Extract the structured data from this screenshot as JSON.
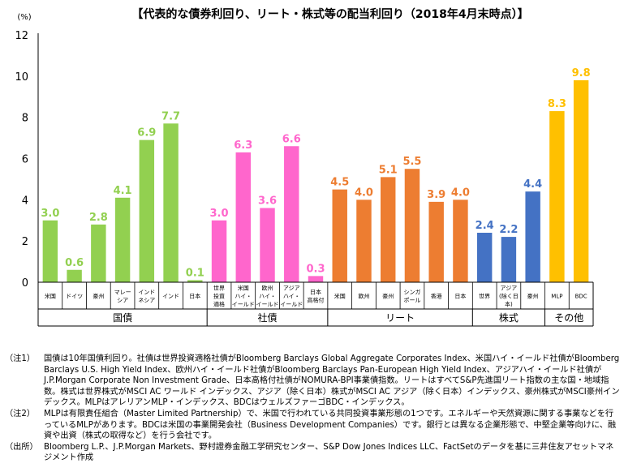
{
  "chart_data": {
    "type": "bar",
    "title": "【代表的な債券利回り、リート・株式等の配当利回り（2018年4月末時点）】",
    "y_unit_label": "(%)",
    "ylim": [
      0,
      12
    ],
    "yticks": [
      "0",
      "2",
      "4",
      "6",
      "8",
      "10",
      "12"
    ],
    "grid": false,
    "categories": [
      "米国",
      "ドイツ",
      "豪州",
      "マレーシア",
      "インドネシア",
      "インド",
      "日本",
      "世界投資適格",
      "米国ハイ・イールド",
      "欧州ハイ・イールド",
      "アジアハイ・イールド",
      "日本高格付",
      "米国",
      "欧州",
      "豪州",
      "シンガポール",
      "香港",
      "日本",
      "世界",
      "アジア(除く日本)",
      "豪州",
      "MLP",
      "BDC"
    ],
    "category_labels": [
      [
        "米国"
      ],
      [
        "ドイツ"
      ],
      [
        "豪州"
      ],
      [
        "マレー",
        "シア"
      ],
      [
        "インド",
        "ネシア"
      ],
      [
        "インド"
      ],
      [
        "日本"
      ],
      [
        "世界",
        "投資",
        "適格"
      ],
      [
        "米国",
        "ハイ・",
        "イールド"
      ],
      [
        "欧州",
        "ハイ・",
        "イールド"
      ],
      [
        "アジア",
        "ハイ・",
        "イールド"
      ],
      [
        "日本",
        "高格付"
      ],
      [
        "米国"
      ],
      [
        "欧州"
      ],
      [
        "豪州"
      ],
      [
        "シンガ",
        "ポール"
      ],
      [
        "香港"
      ],
      [
        "日本"
      ],
      [
        "世界"
      ],
      [
        "アジア",
        "(除く日",
        "本)"
      ],
      [
        "豪州"
      ],
      [
        "MLP"
      ],
      [
        "BDC"
      ]
    ],
    "values": [
      3.0,
      0.6,
      2.8,
      4.1,
      6.9,
      7.7,
      0.1,
      3.0,
      6.3,
      3.6,
      6.6,
      0.3,
      4.5,
      4.0,
      5.1,
      5.5,
      3.9,
      4.0,
      2.4,
      2.2,
      4.4,
      8.3,
      9.8
    ],
    "value_labels": [
      "3.0",
      "0.6",
      "2.8",
      "4.1",
      "6.9",
      "7.7",
      "0.1",
      "3.0",
      "6.3",
      "3.6",
      "6.6",
      "0.3",
      "4.5",
      "4.0",
      "5.1",
      "5.5",
      "3.9",
      "4.0",
      "2.4",
      "2.2",
      "4.4",
      "8.3",
      "9.8"
    ],
    "groups": [
      {
        "name": "国債",
        "count": 7,
        "color": "#92d050"
      },
      {
        "name": "社債",
        "count": 5,
        "color": "#ff66cc"
      },
      {
        "name": "リート",
        "count": 6,
        "color": "#ed7d31"
      },
      {
        "name": "株式",
        "count": 3,
        "color": "#4472c4"
      },
      {
        "name": "その他",
        "count": 2,
        "color": "#ffc000"
      }
    ]
  },
  "notes": [
    {
      "label": "（注1）",
      "text": "国債は10年国債利回り。社債は世界投資適格社債がBloomberg Barclays Global Aggregate Corporates Index、米国ハイ・イールド社債がBloomberg Barclays U.S. High Yield Index、欧州ハイ・イールド社債がBloomberg Barclays Pan-European High Yield Index、アジアハイ・イールド社債がJ.P.Morgan Corporate Non Investment Grade、日本高格付社債がNOMURA-BPI事業債指数。リートはすべてS&P先進国リート指数の主な国・地域指数。株式は世界株式がMSCI AC ワールド インデックス、アジア（除く日本）株式がMSCI AC アジア（除く日本）インデックス、豪州株式がMSCI豪州インデックス。MLPはアレリアンMLP・インデックス、BDCはウェルズファーゴBDC・インデックス。"
    },
    {
      "label": "（注2）",
      "text": "MLPは有限責任組合（Master Limited Partnership）で、米国で行われている共同投資事業形態の1つです。エネルギーや天然資源に関する事業などを行っているMLPがあります。BDCは米国の事業開発会社（Business Development Companies）です。銀行とは異なる企業形態で、中堅企業等向けに、融資や出資（株式の取得など）を行う会社です。"
    },
    {
      "label": "（出所）",
      "text": "Bloomberg L.P.、J.P.Morgan Markets、野村證券金融工学研究センター、S&P Dow Jones Indices LLC、FactSetのデータを基に三井住友アセットマネジメント作成"
    }
  ]
}
